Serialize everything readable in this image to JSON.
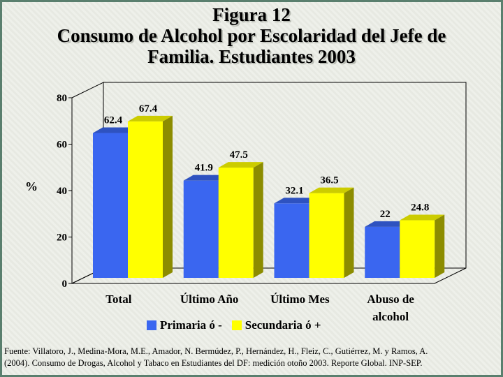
{
  "title": {
    "line1": "Figura 12",
    "line2": "Consumo de Alcohol por Escolaridad del Jefe de",
    "line3": "Familia. Estudiantes 2003"
  },
  "source": {
    "line1": "Fuente: Villatoro, J., Medina-Mora, M.E., Amador, N. Bermúdez, P., Hernández, H., Fleiz, C., Gutiérrez, M. y Ramos, A.",
    "line2": "(2004). Consumo de Drogas, Alcohol y Tabaco en Estudiantes del DF: medición otoño 2003. Reporte Global. INP-SEP."
  },
  "chart_data": {
    "type": "bar",
    "categories": [
      "Total",
      "Último Año",
      "Último Mes",
      "Abuso de alcohol"
    ],
    "category_lines": [
      [
        "Total"
      ],
      [
        "Último Año"
      ],
      [
        "Último Mes"
      ],
      [
        "Abuso de",
        "alcohol"
      ]
    ],
    "series": [
      {
        "name": "Primaria ó -",
        "values": [
          62.4,
          41.9,
          32.1,
          22
        ],
        "labels": [
          "62.4",
          "41.9",
          "32.1",
          "22"
        ],
        "color": "#3a66f0"
      },
      {
        "name": "Secundaria ó +",
        "values": [
          67.4,
          47.5,
          36.5,
          24.8
        ],
        "labels": [
          "67.4",
          "47.5",
          "36.5",
          "24.8"
        ],
        "color": "#ffff00"
      }
    ],
    "ylabel": "%",
    "ylim": [
      0,
      80
    ],
    "yticks": [
      0,
      20,
      40,
      60,
      80
    ],
    "grid": false,
    "legend": "bottom",
    "three_d": true
  }
}
